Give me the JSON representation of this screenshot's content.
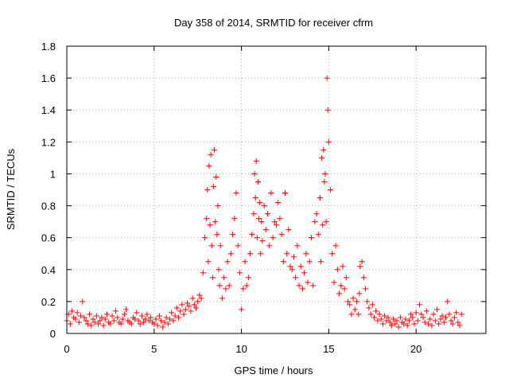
{
  "chart_data": {
    "type": "scatter",
    "title": "Day 358 of 2014, SRMTID for receiver cfrm",
    "xlabel": "GPS time / hours",
    "ylabel": "SRMTID / TECUs",
    "xlim": [
      0,
      24
    ],
    "ylim": [
      0,
      1.8
    ],
    "xticks": [
      0,
      5,
      10,
      15,
      20
    ],
    "yticks": [
      0,
      0.2,
      0.4,
      0.6,
      0.8,
      1,
      1.2,
      1.4,
      1.6,
      1.8
    ],
    "xtick_labels": [
      "0",
      "5",
      "10",
      "15",
      "20"
    ],
    "ytick_labels": [
      "0",
      "0.2",
      "0.4",
      "0.6",
      "0.8",
      "1",
      "1.2",
      "1.4",
      "1.6",
      "1.8"
    ],
    "grid": true,
    "marker": "plus",
    "color": "#ff0000",
    "series": [
      {
        "name": "SRMTID",
        "x": [
          0.0,
          0.1,
          0.2,
          0.3,
          0.4,
          0.5,
          0.6,
          0.7,
          0.8,
          0.9,
          1.0,
          1.1,
          1.2,
          1.3,
          1.4,
          1.5,
          1.6,
          1.7,
          1.8,
          1.9,
          2.0,
          2.1,
          2.2,
          2.3,
          2.4,
          2.5,
          2.6,
          2.7,
          2.8,
          2.9,
          3.0,
          3.1,
          3.2,
          3.3,
          3.4,
          3.5,
          3.6,
          3.7,
          3.8,
          3.9,
          4.0,
          4.1,
          4.2,
          4.3,
          4.4,
          4.5,
          4.6,
          4.7,
          4.8,
          4.9,
          5.0,
          5.1,
          5.2,
          5.3,
          5.4,
          5.5,
          5.6,
          5.7,
          5.8,
          5.9,
          6.0,
          6.1,
          6.2,
          6.3,
          6.4,
          6.5,
          6.6,
          6.7,
          6.8,
          6.9,
          7.0,
          7.1,
          7.2,
          7.3,
          7.4,
          7.5,
          7.6,
          7.7,
          7.8,
          7.9,
          8.0,
          8.05,
          8.1,
          8.15,
          8.2,
          8.25,
          8.3,
          8.35,
          8.4,
          8.45,
          8.5,
          8.55,
          8.6,
          8.65,
          8.7,
          8.75,
          8.8,
          8.9,
          9.0,
          9.1,
          9.2,
          9.3,
          9.4,
          9.5,
          9.6,
          9.7,
          9.8,
          9.9,
          10.0,
          10.1,
          10.2,
          10.3,
          10.4,
          10.5,
          10.6,
          10.7,
          10.75,
          10.8,
          10.85,
          10.9,
          10.95,
          11.0,
          11.05,
          11.1,
          11.15,
          11.2,
          11.3,
          11.4,
          11.5,
          11.6,
          11.7,
          11.8,
          11.9,
          12.0,
          12.1,
          12.2,
          12.3,
          12.4,
          12.5,
          12.6,
          12.7,
          12.8,
          12.9,
          13.0,
          13.1,
          13.2,
          13.3,
          13.4,
          13.5,
          13.6,
          13.7,
          13.8,
          13.9,
          14.0,
          14.1,
          14.2,
          14.3,
          14.4,
          14.5,
          14.55,
          14.6,
          14.65,
          14.7,
          14.75,
          14.8,
          14.85,
          14.9,
          14.95,
          15.0,
          15.1,
          15.2,
          15.3,
          15.4,
          15.5,
          15.6,
          15.7,
          15.8,
          15.9,
          16.0,
          16.1,
          16.2,
          16.3,
          16.4,
          16.5,
          16.6,
          16.7,
          16.75,
          16.8,
          16.9,
          17.0,
          17.1,
          17.2,
          17.3,
          17.4,
          17.5,
          17.6,
          17.7,
          17.8,
          17.9,
          18.0,
          18.1,
          18.2,
          18.3,
          18.4,
          18.5,
          18.6,
          18.7,
          18.8,
          18.9,
          19.0,
          19.1,
          19.2,
          19.3,
          19.4,
          19.5,
          19.6,
          19.7,
          19.8,
          19.9,
          20.0,
          20.1,
          20.2,
          20.3,
          20.4,
          20.5,
          20.6,
          20.7,
          20.8,
          20.9,
          21.0,
          21.1,
          21.2,
          21.3,
          21.4,
          21.5,
          21.6,
          21.7,
          21.8,
          21.9,
          22.0,
          22.1,
          22.2,
          22.3,
          22.4,
          22.5,
          22.6
        ],
        "y": [
          0.08,
          0.12,
          0.06,
          0.14,
          0.1,
          0.09,
          0.13,
          0.07,
          0.11,
          0.2,
          0.1,
          0.08,
          0.06,
          0.12,
          0.05,
          0.09,
          0.07,
          0.11,
          0.06,
          0.08,
          0.1,
          0.05,
          0.09,
          0.12,
          0.07,
          0.06,
          0.11,
          0.08,
          0.14,
          0.1,
          0.07,
          0.06,
          0.09,
          0.12,
          0.15,
          0.08,
          0.07,
          0.06,
          0.1,
          0.09,
          0.13,
          0.08,
          0.06,
          0.11,
          0.07,
          0.09,
          0.12,
          0.08,
          0.1,
          0.07,
          0.06,
          0.09,
          0.05,
          0.11,
          0.08,
          0.04,
          0.07,
          0.1,
          0.06,
          0.09,
          0.13,
          0.08,
          0.11,
          0.16,
          0.1,
          0.14,
          0.18,
          0.12,
          0.15,
          0.19,
          0.17,
          0.14,
          0.22,
          0.18,
          0.16,
          0.2,
          0.24,
          0.22,
          0.38,
          0.6,
          0.72,
          0.9,
          0.45,
          1.05,
          0.68,
          1.12,
          0.55,
          0.35,
          0.92,
          1.15,
          0.7,
          0.98,
          0.62,
          0.8,
          0.4,
          0.3,
          0.55,
          0.22,
          0.35,
          0.28,
          0.45,
          0.3,
          0.5,
          0.62,
          0.72,
          0.88,
          0.55,
          0.38,
          0.15,
          0.28,
          0.45,
          0.3,
          0.35,
          0.5,
          0.62,
          0.75,
          1.0,
          0.85,
          1.08,
          0.6,
          0.95,
          0.72,
          0.82,
          0.5,
          0.7,
          0.58,
          0.8,
          0.65,
          0.75,
          0.55,
          0.88,
          0.6,
          0.7,
          0.68,
          0.82,
          0.72,
          0.62,
          0.45,
          0.88,
          0.5,
          0.65,
          0.42,
          0.4,
          0.48,
          0.35,
          0.55,
          0.3,
          0.42,
          0.28,
          0.38,
          0.5,
          0.32,
          0.45,
          0.6,
          0.3,
          0.7,
          0.75,
          0.62,
          0.85,
          0.45,
          1.1,
          0.68,
          1.15,
          0.95,
          1.0,
          0.7,
          1.6,
          1.4,
          1.2,
          0.9,
          0.5,
          0.32,
          0.55,
          0.4,
          0.25,
          0.3,
          0.42,
          0.28,
          0.35,
          0.2,
          0.18,
          0.12,
          0.22,
          0.15,
          0.2,
          0.12,
          0.25,
          0.42,
          0.45,
          0.35,
          0.28,
          0.2,
          0.16,
          0.12,
          0.18,
          0.1,
          0.14,
          0.08,
          0.12,
          0.09,
          0.06,
          0.11,
          0.08,
          0.1,
          0.07,
          0.05,
          0.09,
          0.06,
          0.08,
          0.04,
          0.1,
          0.07,
          0.06,
          0.09,
          0.05,
          0.08,
          0.12,
          0.1,
          0.06,
          0.13,
          0.08,
          0.18,
          0.12,
          0.1,
          0.07,
          0.14,
          0.06,
          0.09,
          0.05,
          0.12,
          0.08,
          0.15,
          0.06,
          0.09,
          0.11,
          0.07,
          0.1,
          0.2,
          0.12,
          0.08,
          0.06,
          0.1,
          0.13,
          0.07,
          0.05,
          0.12
        ]
      }
    ]
  }
}
